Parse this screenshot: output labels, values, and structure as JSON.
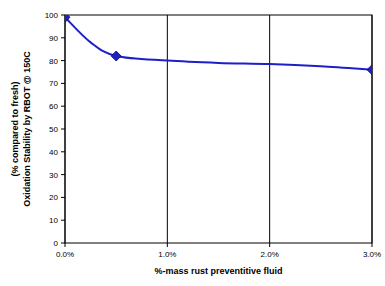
{
  "chart_data": {
    "type": "line",
    "x_label": "%-mass rust preventitive fluid",
    "y_label": [
      "(% compared to fresh)",
      "Oxidation Stability by RBOT @ 150C"
    ],
    "x": [
      0,
      0.25,
      0.5,
      1.0,
      1.5,
      2.0,
      2.5,
      3.0
    ],
    "series": [
      {
        "type": "line",
        "color": "#1f1fc8",
        "marker": "none",
        "line_style": "solid",
        "values": [
          99,
          88,
          82,
          80,
          79,
          78.5,
          77.5,
          76
        ]
      },
      {
        "type": "scatter",
        "color": "#1f1fc8",
        "marker": "diamond",
        "line_style": "none",
        "values": [
          99,
          null,
          82,
          null,
          null,
          null,
          null,
          76
        ]
      }
    ],
    "xlim": [
      0,
      3
    ],
    "xticks": [
      {
        "value": 0,
        "label": "0.0%"
      },
      {
        "value": 1,
        "label": "1.0%"
      },
      {
        "value": 2,
        "label": "2.0%"
      },
      {
        "value": 3,
        "label": "3.0%"
      }
    ],
    "ylim": [
      0,
      100
    ],
    "yticks": [
      0,
      10,
      20,
      30,
      40,
      50,
      60,
      70,
      80,
      90,
      100
    ],
    "grid": "x"
  }
}
